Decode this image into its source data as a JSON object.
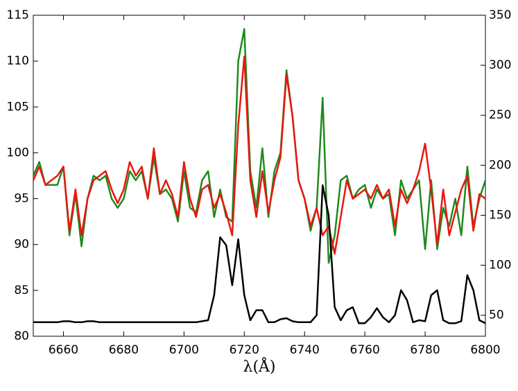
{
  "chart_data": {
    "type": "line",
    "xlabel": "λ(Å)",
    "x": [
      6650,
      6652,
      6654,
      6656,
      6658,
      6660,
      6662,
      6664,
      6666,
      6668,
      6670,
      6672,
      6674,
      6676,
      6678,
      6680,
      6682,
      6684,
      6686,
      6688,
      6690,
      6692,
      6694,
      6696,
      6698,
      6700,
      6702,
      6704,
      6706,
      6708,
      6710,
      6712,
      6714,
      6716,
      6718,
      6720,
      6722,
      6724,
      6726,
      6728,
      6730,
      6732,
      6734,
      6736,
      6738,
      6740,
      6742,
      6744,
      6746,
      6748,
      6750,
      6752,
      6754,
      6756,
      6758,
      6760,
      6762,
      6764,
      6766,
      6768,
      6770,
      6772,
      6774,
      6776,
      6778,
      6780,
      6782,
      6784,
      6786,
      6788,
      6790,
      6792,
      6794,
      6796,
      6798,
      6800
    ],
    "series": [
      {
        "color": "#1e8a1e",
        "values": [
          97.5,
          99,
          96.5,
          96.5,
          96.5,
          98.5,
          91,
          95.5,
          89.8,
          95,
          97.5,
          97,
          97.5,
          95,
          94,
          95,
          98,
          97,
          98,
          95,
          99.5,
          95.5,
          96,
          95,
          92.5,
          98,
          94,
          93.5,
          97,
          98,
          93,
          96,
          93,
          92.5,
          110,
          113.5,
          98,
          94,
          100.5,
          93,
          98,
          100,
          109,
          104,
          97,
          95,
          91.5,
          94,
          106,
          88,
          91,
          97,
          97.5,
          95,
          96,
          96.5,
          94,
          96,
          95,
          95.5,
          91,
          97,
          95,
          96,
          97,
          89.5,
          97,
          89.5,
          94,
          92,
          95,
          91,
          98.5,
          92,
          95,
          97
        ]
      },
      {
        "color": "#e8170f",
        "values": [
          97,
          98.5,
          96.5,
          97,
          97.5,
          98.5,
          91.5,
          96,
          91,
          95,
          97,
          97.5,
          98,
          96,
          94.5,
          96,
          99,
          97.5,
          98.5,
          95,
          100.5,
          95.5,
          97,
          95.5,
          93,
          99,
          95,
          93,
          96,
          96.5,
          94,
          95.5,
          93.5,
          91,
          103,
          110.5,
          97,
          93,
          98,
          93.5,
          97,
          99.5,
          108.5,
          104,
          97,
          95,
          92,
          94,
          91,
          92,
          89,
          93,
          97,
          95,
          95.5,
          96,
          95,
          96.5,
          95,
          96,
          92,
          96,
          94.5,
          96,
          98,
          101,
          96,
          90,
          96,
          91,
          93.5,
          96,
          97.5,
          91.5,
          95.5,
          95
        ]
      },
      {
        "color": "#000000",
        "axis": "y2",
        "values": [
          43,
          43,
          43,
          43,
          43,
          44,
          44,
          43,
          43,
          44,
          44,
          43,
          43,
          43,
          43,
          43,
          43,
          43,
          43,
          43,
          43,
          43,
          43,
          43,
          43,
          43,
          43,
          43,
          44,
          45,
          70,
          128,
          120,
          80,
          126,
          70,
          45,
          55,
          55,
          43,
          43,
          46,
          47,
          44,
          43,
          43,
          43,
          50,
          180,
          150,
          58,
          45,
          55,
          58,
          42,
          42,
          48,
          57,
          48,
          43,
          50,
          75,
          65,
          43,
          45,
          44,
          70,
          75,
          45,
          42,
          42,
          44,
          90,
          75,
          45,
          42
        ]
      }
    ],
    "xlim": [
      6650,
      6800
    ],
    "xticks": [
      6660,
      6680,
      6700,
      6720,
      6740,
      6760,
      6780,
      6800
    ],
    "ylim": [
      80,
      115
    ],
    "yticks": [
      80,
      85,
      90,
      95,
      100,
      105,
      110,
      115
    ],
    "y2lim": [
      29,
      350
    ],
    "y2ticks": [
      50,
      100,
      150,
      200,
      250,
      300,
      350
    ],
    "grid": false
  }
}
